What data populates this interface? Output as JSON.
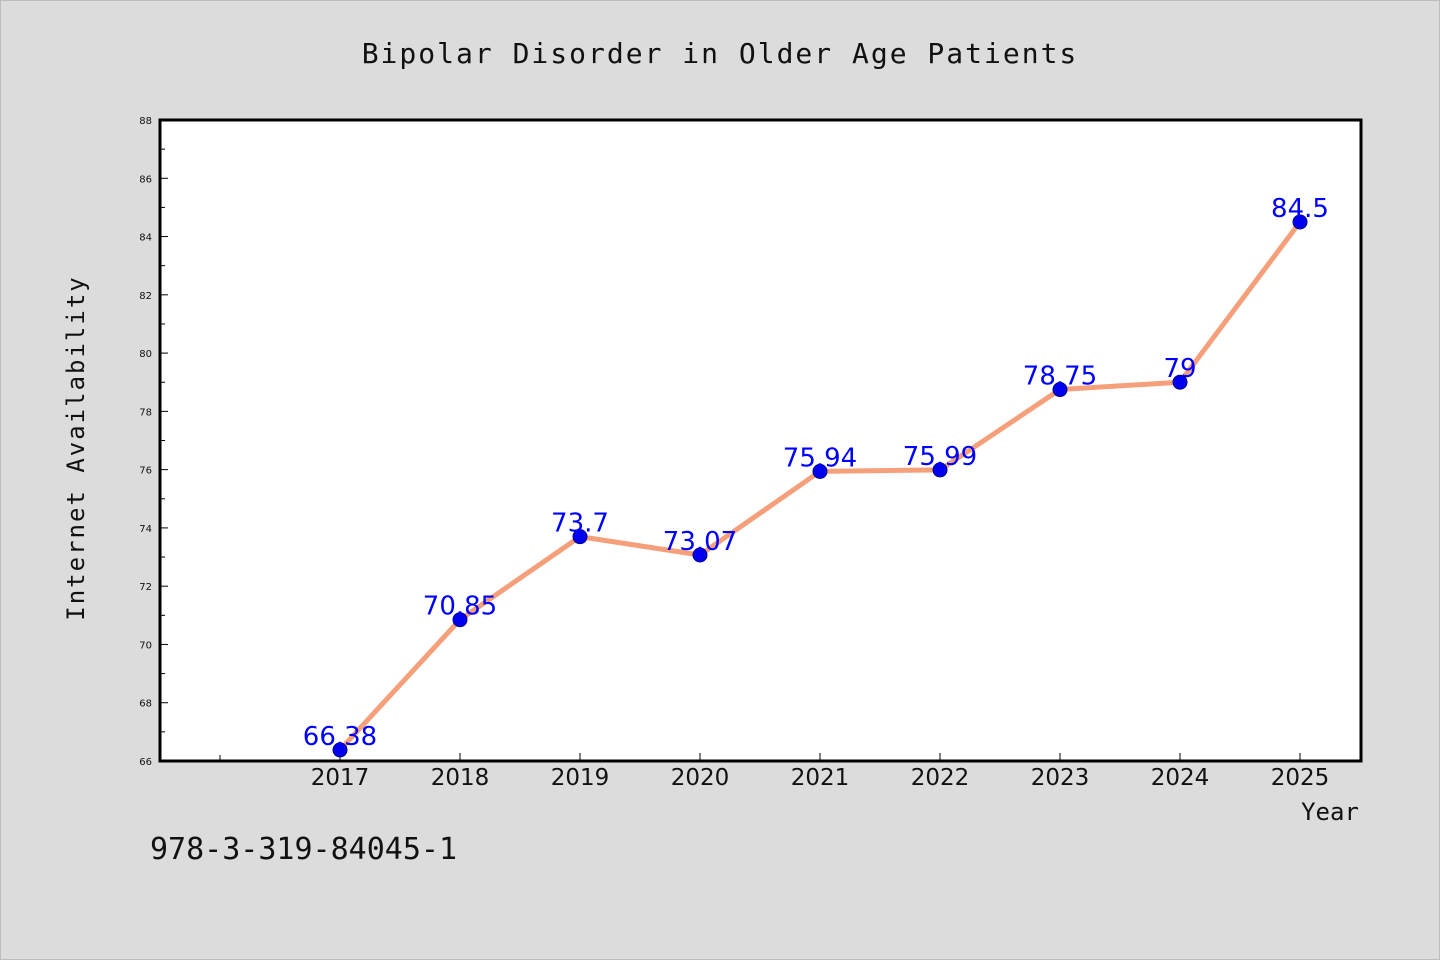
{
  "chart_data": {
    "type": "line",
    "title": "Bipolar Disorder in Older Age Patients",
    "xlabel": "Year",
    "ylabel": "Internet Availability",
    "categories": [
      "2017",
      "2018",
      "2019",
      "2020",
      "2021",
      "2022",
      "2023",
      "2024",
      "2025"
    ],
    "series": [
      {
        "values": [
          66.38,
          70.85,
          73.7,
          73.07,
          75.94,
          75.99,
          78.75,
          79,
          84.5
        ],
        "labels": [
          "66.38",
          "70.85",
          "73.7",
          "73.07",
          "75.94",
          "75.99",
          "78.75",
          "79",
          "84.5"
        ],
        "line_color": "#f5a07a",
        "marker_color": "#0000ee",
        "label_color": "#0000ff"
      }
    ],
    "ylim": [
      66,
      88
    ],
    "yticks": [
      "66",
      "68",
      "70",
      "72",
      "74",
      "76",
      "78",
      "80",
      "82",
      "84",
      "86",
      "88"
    ],
    "grid": false,
    "legend": false
  },
  "footnote": "978-3-319-84045-1",
  "colors": {
    "background": "#dcdcdc",
    "plot_background": "#ffffff"
  }
}
